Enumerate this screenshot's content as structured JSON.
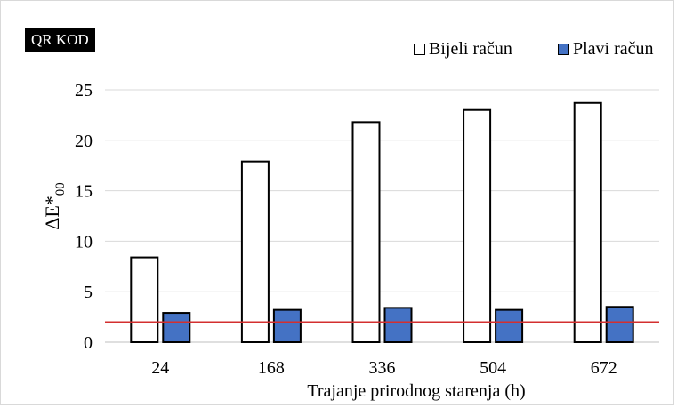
{
  "badge": {
    "label": "QR KOD"
  },
  "chart_data": {
    "type": "bar",
    "title": "",
    "xlabel": "Trajanje prirodnog starenja (h)",
    "ylabel": "ΔE*",
    "ylabel_subscript": "00",
    "categories": [
      "24",
      "168",
      "336",
      "504",
      "672"
    ],
    "series": [
      {
        "name": "Bijeli račun",
        "values": [
          8.4,
          17.9,
          21.8,
          23.0,
          23.7
        ],
        "color": "#ffffff"
      },
      {
        "name": "Plavi račun",
        "values": [
          2.9,
          3.2,
          3.4,
          3.2,
          3.5
        ],
        "color": "#4472c4"
      }
    ],
    "ylim": [
      0,
      25
    ],
    "yticks": [
      "0",
      "5",
      "10",
      "15",
      "20",
      "25"
    ],
    "reference_line": {
      "value": 2.0,
      "color": "#d32f2f"
    },
    "grid": true,
    "legend": "top-right"
  }
}
